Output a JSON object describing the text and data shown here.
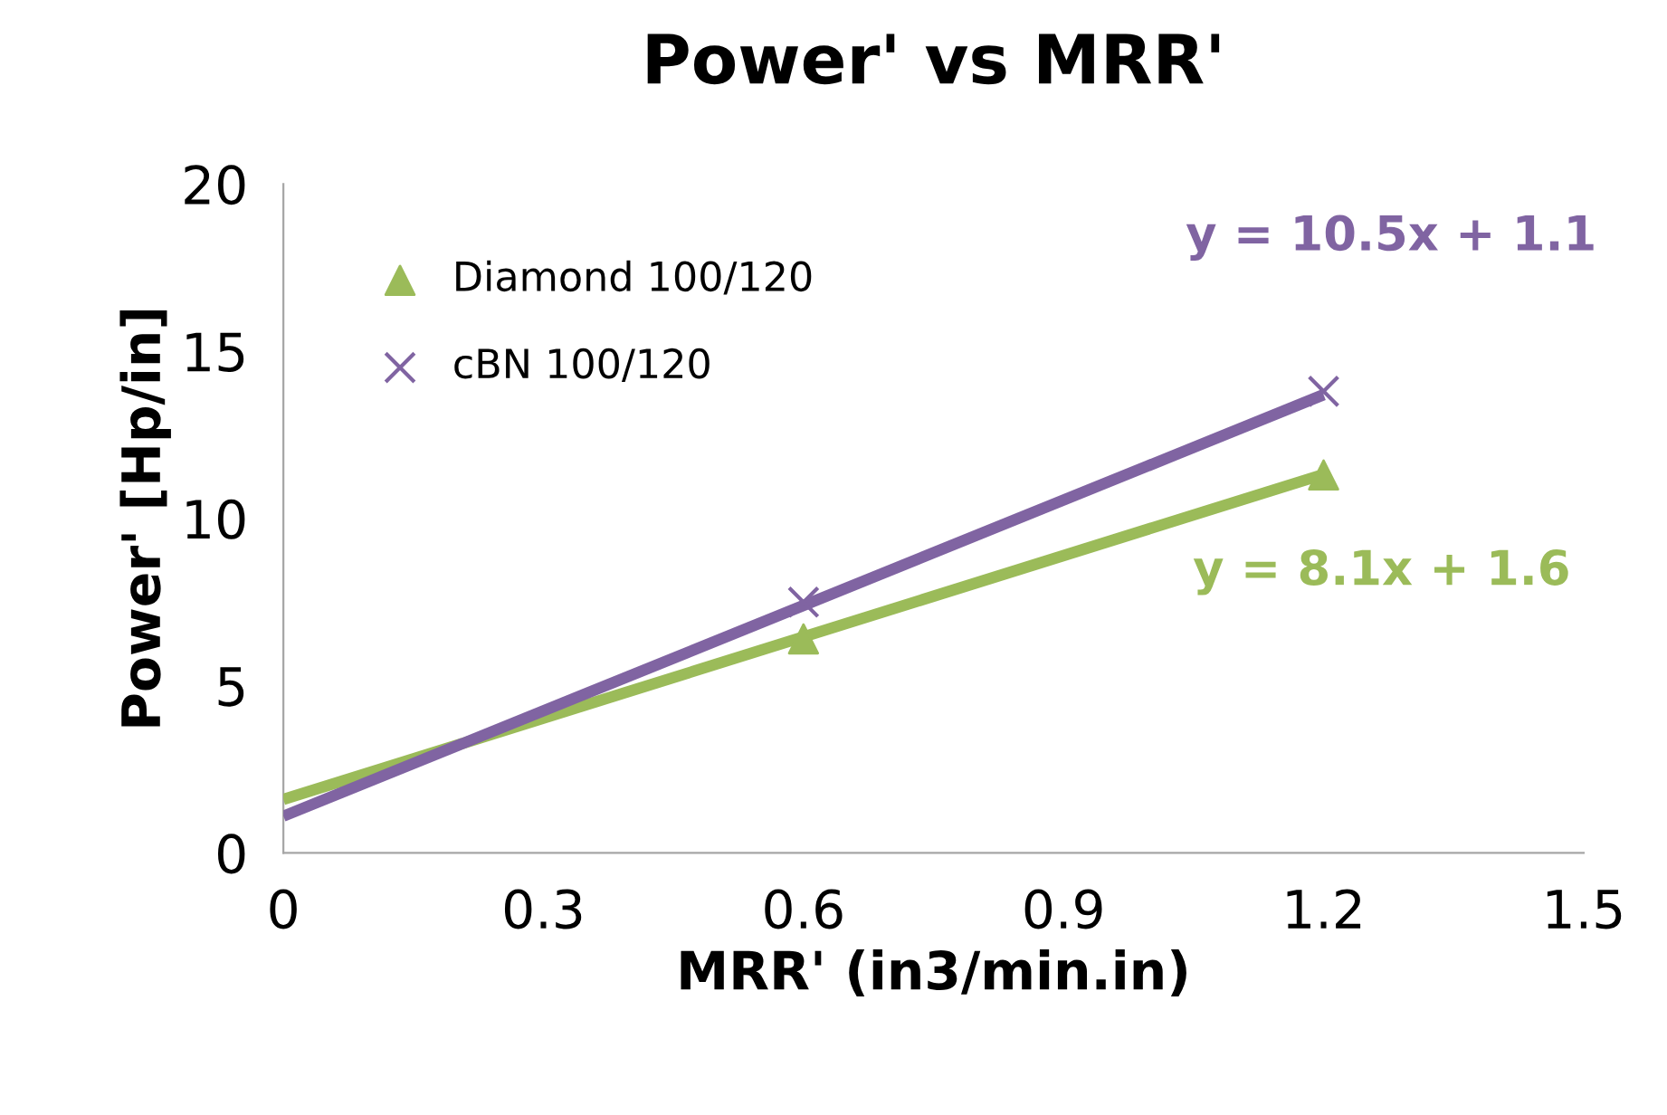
{
  "chart_data": {
    "type": "scatter",
    "title": "Power' vs MRR'",
    "xlabel": "MRR' (in3/min.in)",
    "ylabel": "Power' [Hp/in]",
    "series": [
      {
        "name": "Diamond 100/120",
        "color": "#9bbb59",
        "marker": "triangle",
        "x": [
          0.6,
          1.2
        ],
        "values": [
          6.4,
          11.3
        ]
      },
      {
        "name": "cBN 100/120",
        "color": "#8064a2",
        "marker": "cross",
        "x": [
          0.6,
          1.2
        ],
        "values": [
          7.5,
          13.8
        ]
      },
      {
        "type": "line",
        "color": "#9bbb59",
        "marker": "none",
        "x": [
          0,
          1.2
        ],
        "values": [
          1.6,
          11.32
        ]
      },
      {
        "type": "line",
        "color": "#8064a2",
        "marker": "none",
        "x": [
          0,
          1.2
        ],
        "values": [
          1.1,
          13.7
        ]
      }
    ],
    "annotations": [
      "y = 10.5x + 1.1",
      "y = 8.1x + 1.6"
    ],
    "xlim": [
      0,
      1.5
    ],
    "xticks": [
      0,
      0.3,
      0.6,
      0.9,
      1.2,
      1.5
    ],
    "ylim": [
      0,
      20
    ],
    "yticks": [
      0,
      5,
      10,
      15,
      20
    ],
    "grid": false,
    "legend": "top left"
  }
}
